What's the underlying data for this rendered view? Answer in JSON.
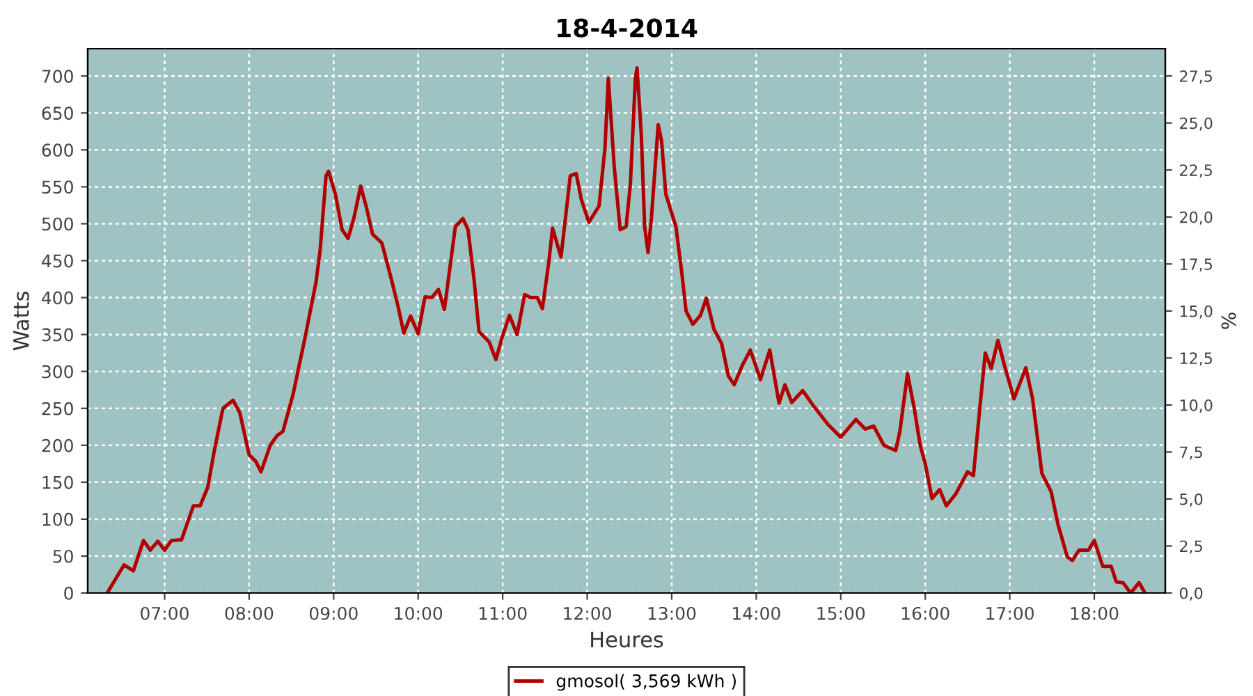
{
  "chart_data": {
    "type": "line",
    "title": "18-4-2014",
    "xlabel": "Heures",
    "ylabel": "Watts",
    "y2label": "%",
    "x": [
      6.32,
      6.52,
      6.63,
      6.75,
      6.83,
      6.92,
      7.0,
      7.08,
      7.2,
      7.34,
      7.42,
      7.51,
      7.59,
      7.69,
      7.81,
      7.89,
      8.0,
      8.08,
      8.14,
      8.25,
      8.33,
      8.4,
      8.52,
      8.66,
      8.79,
      8.84,
      8.91,
      8.94,
      9.02,
      9.1,
      9.17,
      9.24,
      9.32,
      9.39,
      9.46,
      9.57,
      9.68,
      9.76,
      9.83,
      9.91,
      10.0,
      10.08,
      10.16,
      10.24,
      10.31,
      10.44,
      10.53,
      10.59,
      10.66,
      10.72,
      10.84,
      10.92,
      10.99,
      11.08,
      11.17,
      11.26,
      11.33,
      11.41,
      11.47,
      11.55,
      11.59,
      11.69,
      11.8,
      11.87,
      11.93,
      12.02,
      12.14,
      12.21,
      12.25,
      12.32,
      12.39,
      12.46,
      12.51,
      12.57,
      12.59,
      12.64,
      12.68,
      12.72,
      12.76,
      12.84,
      12.88,
      12.93,
      12.99,
      13.05,
      13.12,
      13.17,
      13.25,
      13.34,
      13.41,
      13.5,
      13.59,
      13.67,
      13.74,
      13.83,
      13.93,
      14.05,
      14.16,
      14.27,
      14.34,
      14.42,
      14.55,
      14.68,
      14.85,
      15.0,
      15.18,
      15.29,
      15.39,
      15.51,
      15.65,
      15.7,
      15.79,
      15.87,
      15.94,
      16.0,
      16.08,
      16.17,
      16.25,
      16.36,
      16.5,
      16.57,
      16.64,
      16.71,
      16.78,
      16.86,
      16.94,
      17.05,
      17.19,
      17.27,
      17.38,
      17.49,
      17.57,
      17.68,
      17.74,
      17.82,
      17.93,
      18.0,
      18.1,
      18.2,
      18.26,
      18.34,
      18.43,
      18.53,
      18.6
    ],
    "series": [
      {
        "name": "gmosol( 3,569 kWh )",
        "color": "#b00000",
        "values": [
          0,
          38,
          30,
          71,
          58,
          70,
          58,
          71,
          72,
          118,
          118,
          143,
          194,
          250,
          261,
          244,
          187,
          178,
          164,
          200,
          213,
          219,
          269,
          345,
          420,
          464,
          565,
          571,
          540,
          492,
          480,
          508,
          551,
          521,
          486,
          474,
          426,
          389,
          352,
          375,
          351,
          401,
          400,
          411,
          384,
          496,
          507,
          492,
          426,
          354,
          340,
          316,
          345,
          376,
          350,
          404,
          400,
          400,
          385,
          452,
          494,
          455,
          565,
          568,
          533,
          502,
          524,
          602,
          697,
          577,
          492,
          496,
          552,
          697,
          711,
          621,
          496,
          461,
          508,
          634,
          612,
          540,
          518,
          496,
          433,
          382,
          364,
          376,
          399,
          357,
          338,
          294,
          282,
          307,
          329,
          289,
          329,
          257,
          282,
          258,
          274,
          253,
          228,
          211,
          235,
          222,
          226,
          200,
          193,
          219,
          297,
          250,
          200,
          175,
          128,
          140,
          118,
          134,
          164,
          159,
          244,
          325,
          304,
          342,
          307,
          263,
          305,
          263,
          162,
          137,
          93,
          49,
          44,
          58,
          58,
          71,
          36,
          36,
          15,
          14,
          0,
          14,
          0
        ]
      }
    ],
    "xlim": [
      6.09,
      18.84
    ],
    "xticks": [
      {
        "value": 7,
        "label": "07:00"
      },
      {
        "value": 8,
        "label": "08:00"
      },
      {
        "value": 9,
        "label": "09:00"
      },
      {
        "value": 10,
        "label": "10:00"
      },
      {
        "value": 11,
        "label": "11:00"
      },
      {
        "value": 12,
        "label": "12:00"
      },
      {
        "value": 13,
        "label": "13:00"
      },
      {
        "value": 14,
        "label": "14:00"
      },
      {
        "value": 15,
        "label": "15:00"
      },
      {
        "value": 16,
        "label": "16:00"
      },
      {
        "value": 17,
        "label": "17:00"
      },
      {
        "value": 18,
        "label": "18:00"
      }
    ],
    "ylim": [
      0,
      737
    ],
    "yticks": [
      0,
      50,
      100,
      150,
      200,
      250,
      300,
      350,
      400,
      450,
      500,
      550,
      600,
      650,
      700
    ],
    "y2lim": [
      0,
      28.95
    ],
    "y2ticks": [
      {
        "value": 0,
        "label": "0,0"
      },
      {
        "value": 2.5,
        "label": "2,5"
      },
      {
        "value": 5,
        "label": "5,0"
      },
      {
        "value": 7.5,
        "label": "7,5"
      },
      {
        "value": 10,
        "label": "10,0"
      },
      {
        "value": 12.5,
        "label": "12,5"
      },
      {
        "value": 15,
        "label": "15,0"
      },
      {
        "value": 17.5,
        "label": "17,5"
      },
      {
        "value": 20,
        "label": "20,0"
      },
      {
        "value": 22.5,
        "label": "22,5"
      },
      {
        "value": 25,
        "label": "25,0"
      },
      {
        "value": 27.5,
        "label": "27,5"
      }
    ],
    "grid": true,
    "legend": "bottom",
    "marker": "none",
    "line_style": "solid"
  }
}
